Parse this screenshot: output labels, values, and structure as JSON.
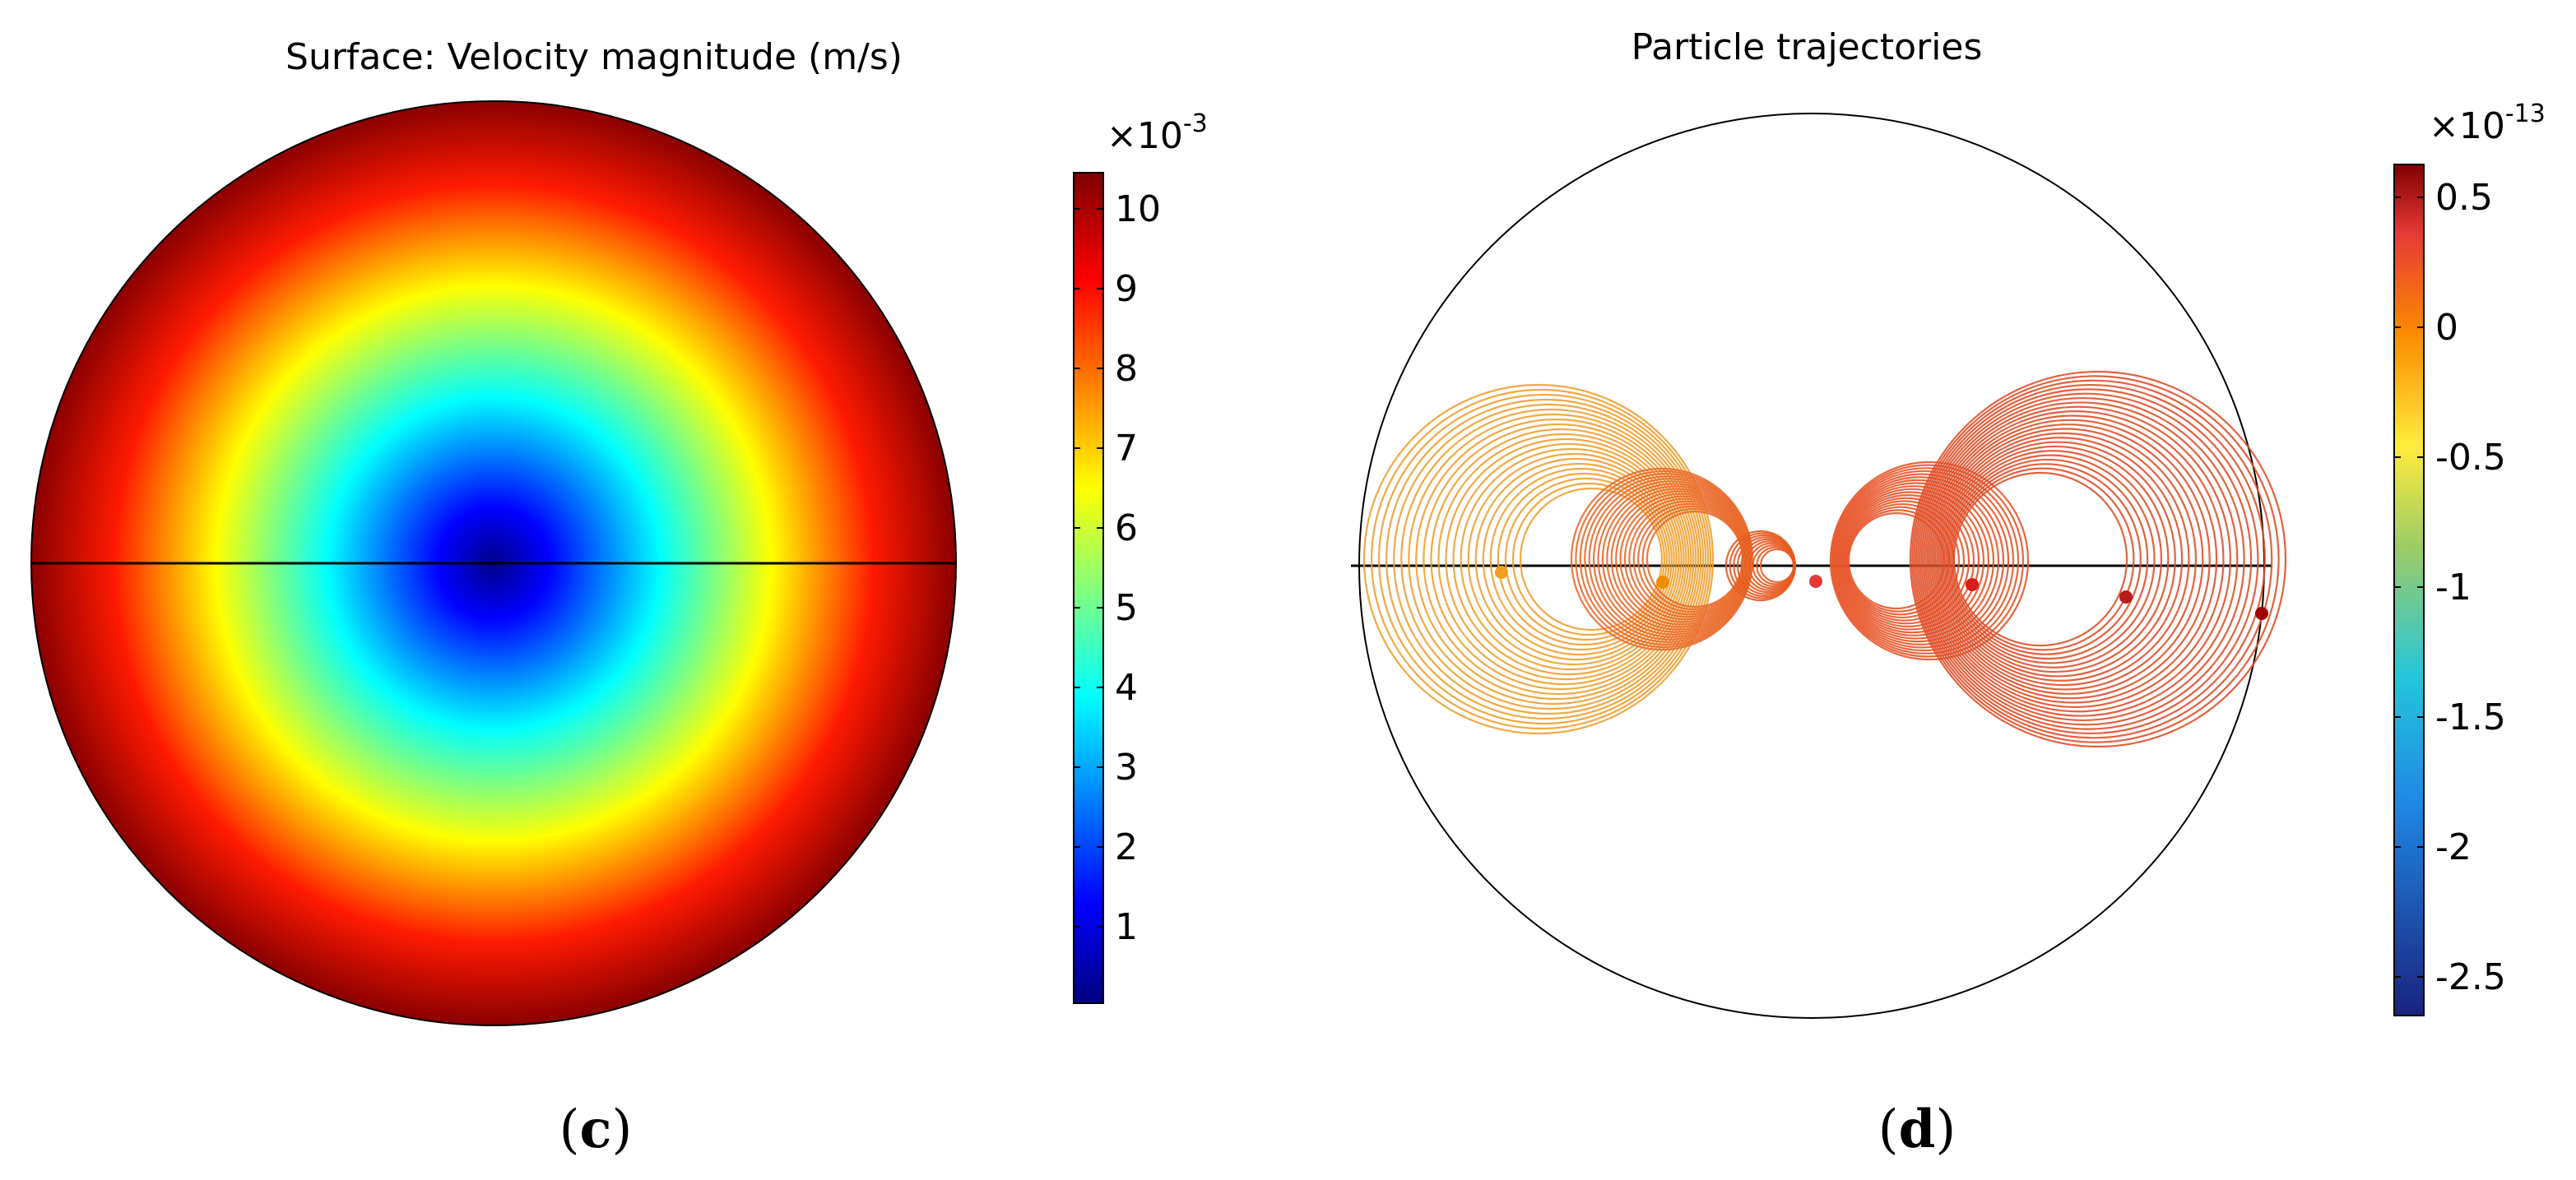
{
  "panel_c": {
    "title": "Surface: Velocity magnitude (m/s)",
    "caption_open": "(",
    "caption_letter": "c",
    "caption_close": ")",
    "multiplier_base": "×10",
    "multiplier_exp": "-3",
    "colorbar_ticks": [
      "10",
      "9",
      "8",
      "7",
      "6",
      "5",
      "4",
      "3",
      "2",
      "1"
    ],
    "colormap": [
      "#00007f",
      "#0000ff",
      "#00ffff",
      "#ffff00",
      "#ff0000",
      "#7f0000"
    ]
  },
  "panel_d": {
    "title": "Particle trajectories",
    "caption_open": "(",
    "caption_letter": "d",
    "caption_close": ")",
    "multiplier_base": "×10",
    "multiplier_exp": "-13",
    "colorbar_ticks": [
      "0.5",
      "0",
      "-0.5",
      "-1",
      "-1.5",
      "-2",
      "-2.5"
    ],
    "colormap": [
      "#1a237e",
      "#1e88e5",
      "#26c6da",
      "#9ccc65",
      "#ffeb3b",
      "#fb8c00",
      "#e53935",
      "#7f0000"
    ]
  }
}
